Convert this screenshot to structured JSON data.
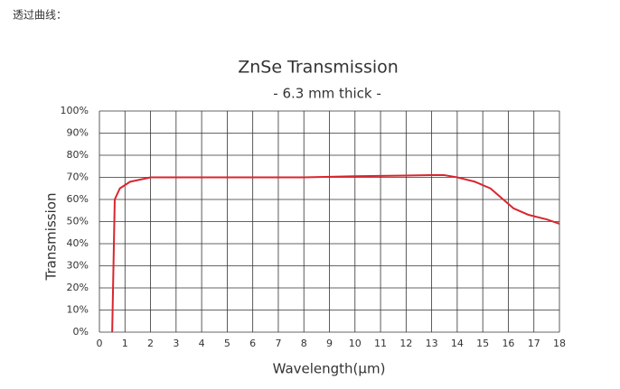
{
  "page_label": "透过曲线：",
  "chart_data": {
    "type": "line",
    "title": "ZnSe Transmission",
    "subtitle": "- 6.3 mm thick -",
    "x_label": "Wavelength(μm)",
    "y_label": "Transmission",
    "x": [
      0.5,
      0.6,
      0.8,
      1.2,
      1.8,
      2,
      4,
      6,
      8,
      10,
      12,
      13,
      13.5,
      14,
      14.7,
      15.3,
      15.8,
      16.2,
      16.8,
      17.5,
      18
    ],
    "values": [
      0,
      60,
      65,
      68,
      69.5,
      70,
      70,
      70,
      70,
      70.5,
      70.8,
      71,
      71,
      70,
      68,
      65,
      60,
      56,
      53,
      51,
      49
    ],
    "color": "#d9262e",
    "xlim": [
      0,
      18
    ],
    "xticks": [
      0,
      1,
      2,
      3,
      4,
      5,
      6,
      7,
      8,
      9,
      10,
      11,
      12,
      13,
      14,
      15,
      16,
      17,
      18
    ],
    "ylim": [
      0,
      100
    ],
    "yticks": [
      {
        "value": 0,
        "label": "0%"
      },
      {
        "value": 10,
        "label": "10%"
      },
      {
        "value": 20,
        "label": "20%"
      },
      {
        "value": 30,
        "label": "30%"
      },
      {
        "value": 40,
        "label": "40%"
      },
      {
        "value": 50,
        "label": "50%"
      },
      {
        "value": 60,
        "label": "60%"
      },
      {
        "value": 70,
        "label": "70%"
      },
      {
        "value": 80,
        "label": "80%"
      },
      {
        "value": 90,
        "label": "90%"
      },
      {
        "value": 100,
        "label": "100%"
      }
    ],
    "grid": true
  }
}
